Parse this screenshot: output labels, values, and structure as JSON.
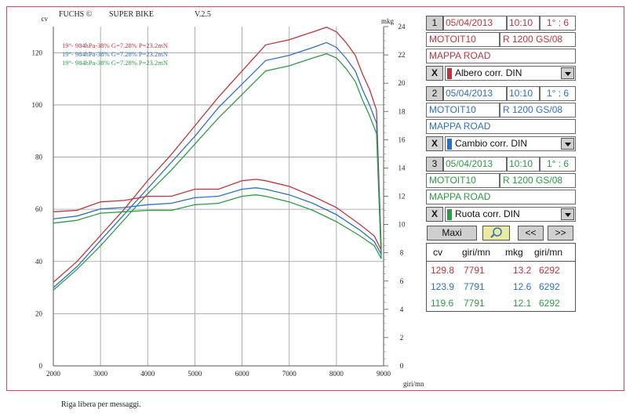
{
  "header": {
    "brand": "FUCHS ©",
    "product": "SUPER BIKE",
    "version": "V.2.5"
  },
  "footer": {
    "message": "Riga libera per messaggi."
  },
  "legend": [
    {
      "text": "19°- 984hPa-38% G=7.28% P=23.2mN",
      "color": "#c0343e"
    },
    {
      "text": "19°- 984hPa-38% G=7.28% P=23.2mN",
      "color": "#2f6fc2"
    },
    {
      "text": "19°- 984hPa-38% G=7.28% P=23.2mN",
      "color": "#2c9b44"
    }
  ],
  "runs": [
    {
      "number": "1",
      "date": "05/04/2013",
      "time": "10:10",
      "gear": "1° : 6",
      "user": "MOTOIT10",
      "bike": "R 1200 GS/08",
      "map": "MAPPA ROAD",
      "x_label": "X",
      "correction": "Albero corr. DIN",
      "color": "#c0343e"
    },
    {
      "number": "2",
      "date": "05/04/2013",
      "time": "10:10",
      "gear": "1° : 6",
      "user": "MOTOIT10",
      "bike": "R 1200 GS/08",
      "map": "MAPPA ROAD",
      "x_label": "X",
      "correction": "Cambio corr. DIN",
      "color": "#2f6fc2"
    },
    {
      "number": "3",
      "date": "05/04/2013",
      "time": "10:10",
      "gear": "1° : 6",
      "user": "MOTOIT10",
      "bike": "R 1200 GS/08",
      "map": "MAPPA ROAD",
      "x_label": "X",
      "correction": "Ruota corr. DIN",
      "color": "#2c9b44"
    }
  ],
  "buttons": {
    "maxi": "Maxi",
    "prev": "<<",
    "next": ">>"
  },
  "results": {
    "headers": {
      "cv": "cv",
      "rpm1": "giri/mn",
      "mkg": "mkg",
      "rpm2": "giri/mn"
    },
    "rows": [
      {
        "cv": "129.8",
        "cv_rpm": "7791",
        "mkg": "13.2",
        "mkg_rpm": "6292",
        "color": "#c0343e"
      },
      {
        "cv": "123.9",
        "cv_rpm": "7791",
        "mkg": "12.6",
        "mkg_rpm": "6292",
        "color": "#2f6fc2"
      },
      {
        "cv": "119.6",
        "cv_rpm": "7791",
        "mkg": "12.1",
        "mkg_rpm": "6292",
        "color": "#2c9b44"
      }
    ]
  },
  "chart_data": {
    "type": "line",
    "xlabel": "giri/mn",
    "ylabel": "cv",
    "y2label": "mkg",
    "xlim": [
      2000,
      9000
    ],
    "ylim": [
      0,
      130
    ],
    "y2lim": [
      0,
      24
    ],
    "x_ticks": [
      2000,
      3000,
      4000,
      5000,
      6000,
      7000,
      8000,
      9000
    ],
    "y_ticks": [
      0,
      20,
      40,
      60,
      80,
      100,
      120
    ],
    "y2_ticks": [
      0,
      2,
      4,
      6,
      8,
      10,
      12,
      14,
      16,
      18,
      20,
      22,
      24
    ],
    "grid": true,
    "series": [
      {
        "color": "#c0343e",
        "kind": "power",
        "x": [
          2000,
          2500,
          3000,
          3500,
          4000,
          4500,
          5000,
          5500,
          6000,
          6500,
          7000,
          7500,
          7791,
          8000,
          8200,
          8400,
          8550,
          8700,
          8850,
          8950
        ],
        "y": [
          32,
          40,
          50,
          60,
          71,
          81,
          92,
          103,
          113,
          123,
          125,
          128,
          129.8,
          128,
          124,
          119,
          112,
          106,
          98,
          45
        ]
      },
      {
        "color": "#2f6fc2",
        "kind": "power",
        "x": [
          2000,
          2500,
          3000,
          3500,
          4000,
          4500,
          5000,
          5500,
          6000,
          6500,
          7000,
          7500,
          7791,
          8000,
          8200,
          8400,
          8550,
          8700,
          8850,
          8950
        ],
        "y": [
          30,
          38,
          48,
          58,
          68,
          78,
          88,
          99,
          108,
          117,
          119,
          122,
          123.9,
          122,
          118,
          113,
          106,
          100,
          93,
          43
        ]
      },
      {
        "color": "#2c9b44",
        "kind": "power",
        "x": [
          2000,
          2500,
          3000,
          3500,
          4000,
          4500,
          5000,
          5500,
          6000,
          6500,
          7000,
          7500,
          7791,
          8000,
          8200,
          8400,
          8550,
          8700,
          8850,
          8950
        ],
        "y": [
          29,
          37,
          46,
          56,
          66,
          75,
          85,
          95,
          104,
          113,
          115,
          118,
          119.6,
          118,
          114,
          109,
          102,
          96,
          89,
          41
        ]
      },
      {
        "color": "#c0343e",
        "kind": "torque",
        "x": [
          2000,
          2500,
          3000,
          3500,
          4000,
          4500,
          5000,
          5500,
          6000,
          6292,
          6500,
          7000,
          7500,
          8000,
          8500,
          8800,
          8950
        ],
        "y": [
          10.9,
          11.0,
          11.6,
          11.7,
          12.0,
          12.0,
          12.5,
          12.5,
          13.1,
          13.2,
          13.1,
          12.7,
          12.0,
          11.2,
          10.0,
          9.2,
          8.2
        ]
      },
      {
        "color": "#2f6fc2",
        "kind": "torque",
        "x": [
          2000,
          2500,
          3000,
          3500,
          4000,
          4500,
          5000,
          5500,
          6000,
          6292,
          6500,
          7000,
          7500,
          8000,
          8500,
          8800,
          8950
        ],
        "y": [
          10.4,
          10.6,
          11.1,
          11.2,
          11.4,
          11.5,
          11.9,
          12.0,
          12.5,
          12.6,
          12.5,
          12.1,
          11.5,
          10.7,
          9.6,
          8.8,
          7.9
        ]
      },
      {
        "color": "#2c9b44",
        "kind": "torque",
        "x": [
          2000,
          2500,
          3000,
          3500,
          4000,
          4500,
          5000,
          5500,
          6000,
          6292,
          6500,
          7000,
          7500,
          8000,
          8500,
          8800,
          8950
        ],
        "y": [
          10.1,
          10.3,
          10.8,
          10.9,
          11.0,
          11.0,
          11.4,
          11.5,
          12.0,
          12.1,
          12.0,
          11.6,
          11.0,
          10.2,
          9.2,
          8.5,
          7.6
        ]
      }
    ]
  }
}
